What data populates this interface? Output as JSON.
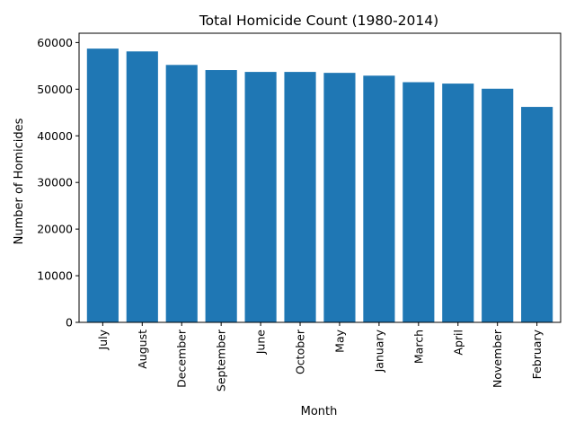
{
  "chart_data": {
    "type": "bar",
    "title": "Total Homicide Count (1980-2014)",
    "xlabel": "Month",
    "ylabel": "Number of Homicides",
    "categories": [
      "July",
      "August",
      "December",
      "September",
      "June",
      "October",
      "May",
      "January",
      "March",
      "April",
      "November",
      "February"
    ],
    "values": [
      58700,
      58100,
      55200,
      54100,
      53700,
      53700,
      53500,
      52900,
      51500,
      51200,
      50100,
      46200
    ],
    "ylim": [
      0,
      62000
    ],
    "yticks": [
      0,
      10000,
      20000,
      30000,
      40000,
      50000,
      60000
    ],
    "bar_color": "#1f77b4",
    "grid": false,
    "legend": "none"
  }
}
